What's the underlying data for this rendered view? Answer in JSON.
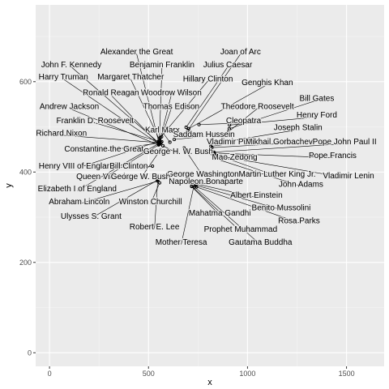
{
  "colors": {
    "panel": "#ebebeb",
    "grid_major": "#ffffff",
    "grid_minor": "#f5f5f5",
    "tick_text": "#4d4d4d",
    "point": "#000000",
    "segment": "#000000"
  },
  "chart_data": {
    "type": "scatter",
    "xlabel": "x",
    "ylabel": "y",
    "xlim": [
      -70,
      1690
    ],
    "ylim": [
      -30,
      770
    ],
    "xticks": [
      0,
      500,
      1000,
      1500
    ],
    "yticks": [
      0,
      200,
      400,
      600
    ],
    "grid": true,
    "points": [
      {
        "label": "Alexander the Great",
        "x": 551,
        "y": 468,
        "lx": 440,
        "ly": 667
      },
      {
        "label": "Joan of Arc",
        "x": 698,
        "y": 492,
        "lx": 965,
        "ly": 667
      },
      {
        "label": "Benjamin Franklin",
        "x": 555,
        "y": 473,
        "lx": 568,
        "ly": 638
      },
      {
        "label": "Julius Caesar",
        "x": 690,
        "y": 499,
        "lx": 900,
        "ly": 638
      },
      {
        "label": "John F. Kennedy",
        "x": 551,
        "y": 465,
        "lx": 110,
        "ly": 638
      },
      {
        "label": "Harry Truman",
        "x": 553,
        "y": 462,
        "lx": 70,
        "ly": 611
      },
      {
        "label": "Margaret Thatcher",
        "x": 558,
        "y": 469,
        "lx": 410,
        "ly": 611
      },
      {
        "label": "Hillary Clinton",
        "x": 559,
        "y": 476,
        "lx": 800,
        "ly": 607
      },
      {
        "label": "Genghis Khan",
        "x": 703,
        "y": 496,
        "lx": 1100,
        "ly": 599
      },
      {
        "label": "Ronald Reagan",
        "x": 553,
        "y": 461,
        "lx": 310,
        "ly": 576
      },
      {
        "label": "Woodrow Wilson",
        "x": 554,
        "y": 464,
        "lx": 615,
        "ly": 576
      },
      {
        "label": "Bill Gates",
        "x": 908,
        "y": 496,
        "lx": 1350,
        "ly": 564
      },
      {
        "label": "Andrew Jackson",
        "x": 551,
        "y": 460,
        "lx": 100,
        "ly": 546
      },
      {
        "label": "Thomas Edison",
        "x": 566,
        "y": 478,
        "lx": 615,
        "ly": 546
      },
      {
        "label": "Theodore Roosevelt",
        "x": 906,
        "y": 490,
        "lx": 1050,
        "ly": 546
      },
      {
        "label": "Henry Ford",
        "x": 909,
        "y": 504,
        "lx": 1350,
        "ly": 527
      },
      {
        "label": "Franklin D. Roosevelt",
        "x": 552,
        "y": 468,
        "lx": 230,
        "ly": 514
      },
      {
        "label": "Cleopatra",
        "x": 755,
        "y": 505,
        "lx": 980,
        "ly": 514
      },
      {
        "label": "Joseph Stalin",
        "x": 816,
        "y": 462,
        "lx": 1255,
        "ly": 499
      },
      {
        "label": "Karl Marx",
        "x": 608,
        "y": 466,
        "lx": 570,
        "ly": 494
      },
      {
        "label": "Saddam Hussein",
        "x": 630,
        "y": 472,
        "lx": 780,
        "ly": 484
      },
      {
        "label": "Richard Nixon",
        "x": 554,
        "y": 465,
        "lx": 60,
        "ly": 487
      },
      {
        "label": "Vladimir Putin",
        "x": 815,
        "y": 457,
        "lx": 920,
        "ly": 468
      },
      {
        "label": "Mikhail Gorbachev",
        "x": 820,
        "y": 454,
        "lx": 1160,
        "ly": 468
      },
      {
        "label": "Pope John Paul II",
        "x": 830,
        "y": 444,
        "lx": 1490,
        "ly": 468
      },
      {
        "label": "Constantine the Great",
        "x": 563,
        "y": 465,
        "lx": 275,
        "ly": 452
      },
      {
        "label": "George H. W. Bush",
        "x": 573,
        "y": 458,
        "lx": 650,
        "ly": 446
      },
      {
        "label": "Mao Zedong",
        "x": 819,
        "y": 441,
        "lx": 935,
        "ly": 434
      },
      {
        "label": "Pope Francis",
        "x": 832,
        "y": 442,
        "lx": 1430,
        "ly": 437
      },
      {
        "label": "Henry VIII of England",
        "x": 553,
        "y": 468,
        "lx": 140,
        "ly": 414
      },
      {
        "label": "Bill Clinton",
        "x": 520,
        "y": 413,
        "lx": 400,
        "ly": 414
      },
      {
        "label": "George Washington",
        "x": 680,
        "y": 453,
        "lx": 775,
        "ly": 396
      },
      {
        "label": "Martin Luther King Jr.",
        "x": 832,
        "y": 440,
        "lx": 1150,
        "ly": 396
      },
      {
        "label": "Vladimir Lenin",
        "x": 834,
        "y": 437,
        "lx": 1510,
        "ly": 392
      },
      {
        "label": "Queen Victoria",
        "x": 558,
        "y": 462,
        "lx": 270,
        "ly": 391
      },
      {
        "label": "George W. Bush",
        "x": 560,
        "y": 449,
        "lx": 460,
        "ly": 391
      },
      {
        "label": "Napoleon Bonaparte",
        "x": 734,
        "y": 376,
        "lx": 790,
        "ly": 380
      },
      {
        "label": "John Adams",
        "x": 835,
        "y": 430,
        "lx": 1270,
        "ly": 374
      },
      {
        "label": "Elizabeth I of England",
        "x": 567,
        "y": 467,
        "lx": 140,
        "ly": 364
      },
      {
        "label": "Albert Einstein",
        "x": 738,
        "y": 374,
        "lx": 1045,
        "ly": 349
      },
      {
        "label": "Abraham Lincoln",
        "x": 547,
        "y": 380,
        "lx": 150,
        "ly": 335
      },
      {
        "label": "Winston Churchill",
        "x": 556,
        "y": 376,
        "lx": 510,
        "ly": 335
      },
      {
        "label": "Benito Mussolini",
        "x": 739,
        "y": 371,
        "lx": 1170,
        "ly": 322
      },
      {
        "label": "Mahatma Gandhi",
        "x": 718,
        "y": 368,
        "lx": 860,
        "ly": 310
      },
      {
        "label": "Ulysses S. Grant",
        "x": 545,
        "y": 382,
        "lx": 210,
        "ly": 303
      },
      {
        "label": "Rosa Parks",
        "x": 742,
        "y": 367,
        "lx": 1260,
        "ly": 293
      },
      {
        "label": "Robert E. Lee",
        "x": 547,
        "y": 384,
        "lx": 530,
        "ly": 279
      },
      {
        "label": "Prophet Muhammad",
        "x": 718,
        "y": 369,
        "lx": 965,
        "ly": 274
      },
      {
        "label": "Mother Teresa",
        "x": 730,
        "y": 371,
        "lx": 665,
        "ly": 245
      },
      {
        "label": "Gautama Buddha",
        "x": 733,
        "y": 367,
        "lx": 1065,
        "ly": 245
      }
    ]
  }
}
